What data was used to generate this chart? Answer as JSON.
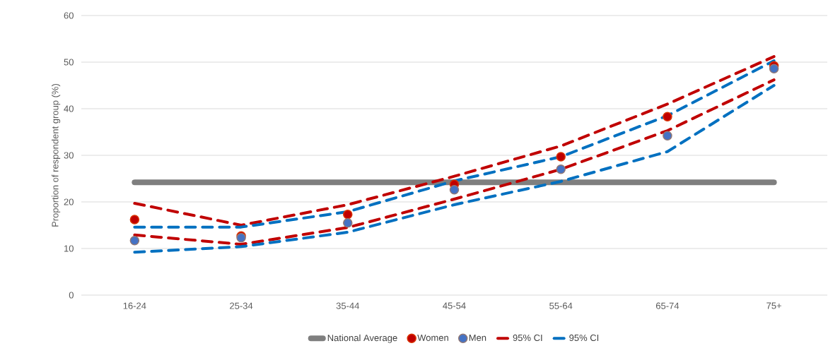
{
  "chart_data": {
    "type": "line",
    "ylabel": "Proportion of respondent group (%)",
    "categories": [
      "16-24",
      "25-34",
      "35-44",
      "45-54",
      "55-64",
      "65-74",
      "75+"
    ],
    "series": [
      {
        "name": "National Average",
        "color": "#7f7f7f",
        "values": [
          24.2,
          24.2,
          24.2,
          24.2,
          24.2,
          24.2,
          24.2
        ]
      },
      {
        "name": "Women",
        "type": "scatter",
        "color": "#c00000",
        "values": [
          16.2,
          12.7,
          17.3,
          23.8,
          29.7,
          38.3,
          49.2
        ]
      },
      {
        "name": "Men",
        "type": "scatter",
        "color": "#4472c4",
        "values": [
          11.7,
          12.3,
          15.5,
          22.6,
          27.0,
          34.2,
          48.6
        ]
      },
      {
        "name": "95% CI",
        "type": "line",
        "line_style": "dashed",
        "color": "#c00000",
        "values": [
          19.7,
          15.0,
          19.4,
          25.5,
          32.0,
          41.0,
          51.2
        ]
      },
      {
        "type": "line",
        "line_style": "dashed",
        "color": "#c00000",
        "values": [
          12.9,
          10.9,
          14.5,
          20.6,
          27.0,
          35.3,
          46.2
        ]
      },
      {
        "name": "95% CI",
        "type": "line",
        "line_style": "dashed",
        "color": "#0070c0",
        "values": [
          14.6,
          14.6,
          17.9,
          24.5,
          29.7,
          38.5,
          50.3
        ]
      },
      {
        "type": "line",
        "line_style": "dashed",
        "color": "#0070c0",
        "values": [
          9.2,
          10.4,
          13.5,
          19.4,
          24.4,
          30.8,
          45.0
        ]
      }
    ],
    "ylim": [
      0,
      60
    ],
    "yticks": [
      0,
      10,
      20,
      30,
      40,
      50,
      60
    ],
    "grid": "y",
    "legend": "bottom"
  }
}
